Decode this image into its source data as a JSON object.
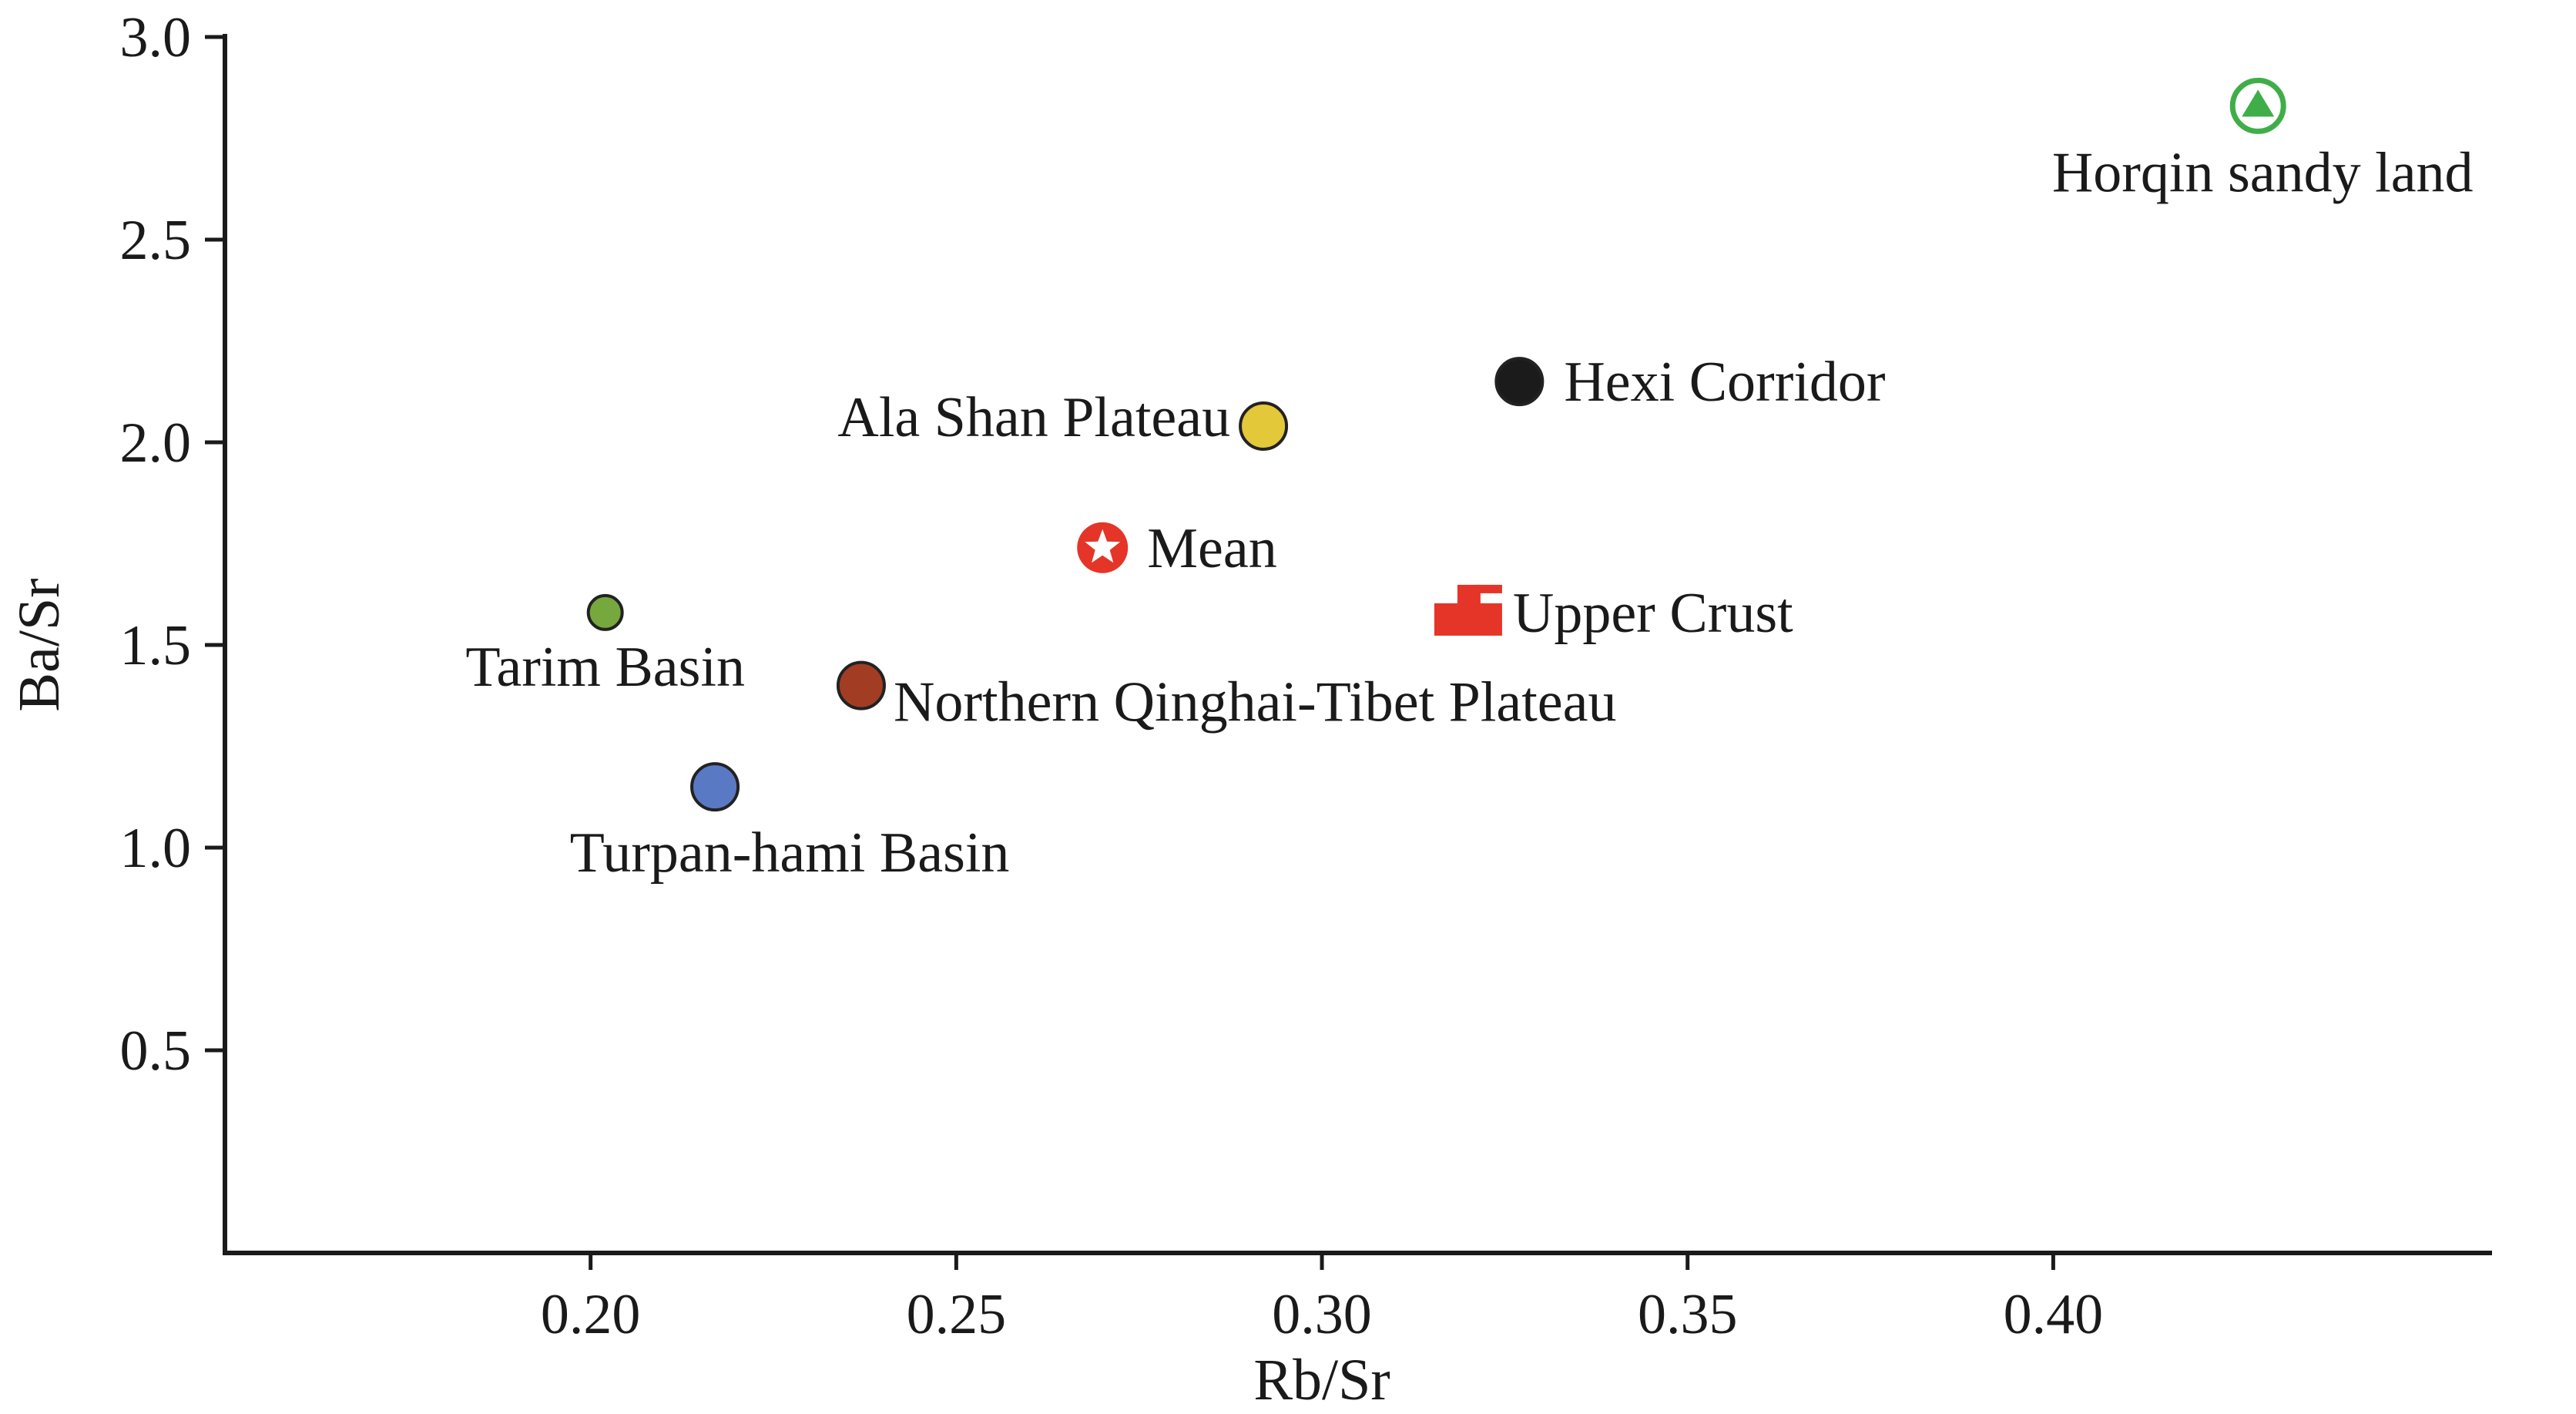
{
  "chart_data": {
    "type": "scatter",
    "xlabel": "Rb/Sr",
    "ylabel": "Ba/Sr",
    "xlim": [
      0.15,
      0.46
    ],
    "ylim": [
      0.0,
      3.0
    ],
    "x_ticks": [
      0.2,
      0.25,
      0.3,
      0.35,
      0.4
    ],
    "x_tick_labels": [
      "0.20",
      "0.25",
      "0.30",
      "0.35",
      "0.40"
    ],
    "y_ticks": [
      0.5,
      1.0,
      1.5,
      2.0,
      2.5,
      3.0
    ],
    "y_tick_labels": [
      "0.5",
      "1.0",
      "1.5",
      "2.0",
      "2.5",
      "3.0"
    ],
    "grid": false,
    "points": [
      {
        "label": "Horqin sandy land",
        "x": 0.428,
        "y": 2.83,
        "marker": "triangle-circle",
        "color": "#3fae49",
        "label_pos": "below"
      },
      {
        "label": "Hexi Corridor",
        "x": 0.327,
        "y": 2.15,
        "marker": "circle",
        "color": "#1b1b1b",
        "label_pos": "right"
      },
      {
        "label": "Ala Shan Plateau",
        "x": 0.292,
        "y": 2.04,
        "marker": "circle",
        "color": "#e3c83a",
        "label_pos": "left"
      },
      {
        "label": "Mean",
        "x": 0.27,
        "y": 1.74,
        "marker": "star-circle",
        "color": "#e53528",
        "label_pos": "right"
      },
      {
        "label": "Upper Crust",
        "x": 0.32,
        "y": 1.58,
        "marker": "upper-crust",
        "color": "#e53528",
        "label_pos": "right"
      },
      {
        "label": "Tarim Basin",
        "x": 0.202,
        "y": 1.58,
        "marker": "circle-small",
        "color": "#76a83d",
        "label_pos": "below"
      },
      {
        "label": "Northern Qinghai-Tibet Plateau",
        "x": 0.237,
        "y": 1.4,
        "marker": "circle",
        "color": "#a23d24",
        "label_pos": "below-right"
      },
      {
        "label": "Turpan-hami Basin",
        "x": 0.217,
        "y": 1.15,
        "marker": "circle",
        "color": "#5a79c4",
        "label_pos": "below"
      }
    ]
  }
}
